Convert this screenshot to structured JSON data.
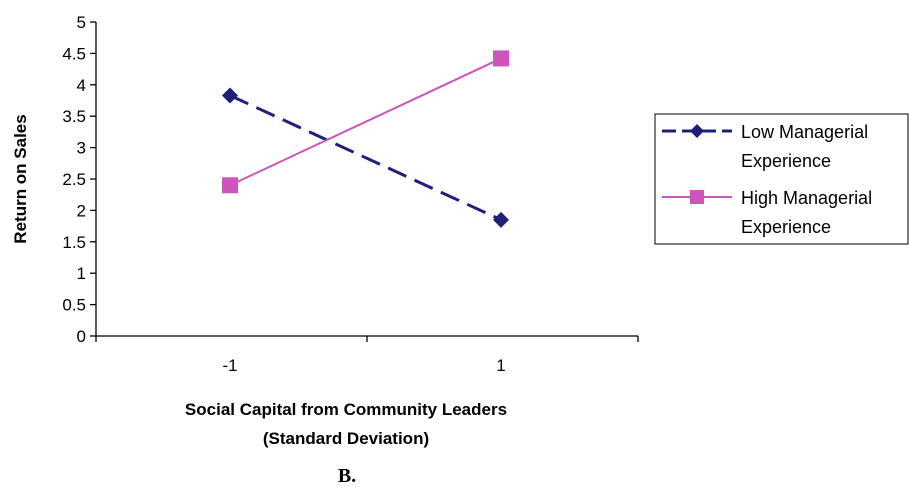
{
  "chart_data": {
    "type": "line",
    "title": "",
    "xlabel": [
      "Social Capital from Community Leaders",
      "(Standard Deviation)"
    ],
    "ylabel": "Return on Sales",
    "categories": [
      "-1",
      "1"
    ],
    "ylim": [
      0,
      5
    ],
    "yticks": [
      "0",
      "0.5",
      "1",
      "1.5",
      "2",
      "2.5",
      "3",
      "3.5",
      "4",
      "4.5",
      "5"
    ],
    "grid": false,
    "legend_position": "right",
    "series": [
      {
        "name": [
          "Low Managerial",
          "Experience"
        ],
        "values": [
          3.83,
          1.85
        ],
        "color": "#1f1f7a",
        "line_style": "dashed",
        "marker": "diamond"
      },
      {
        "name": [
          "High Managerial",
          "Experience"
        ],
        "values": [
          2.4,
          4.42
        ],
        "color": "#cc55bb",
        "line_style": "solid",
        "marker": "square"
      }
    ]
  },
  "panel_label": "B."
}
